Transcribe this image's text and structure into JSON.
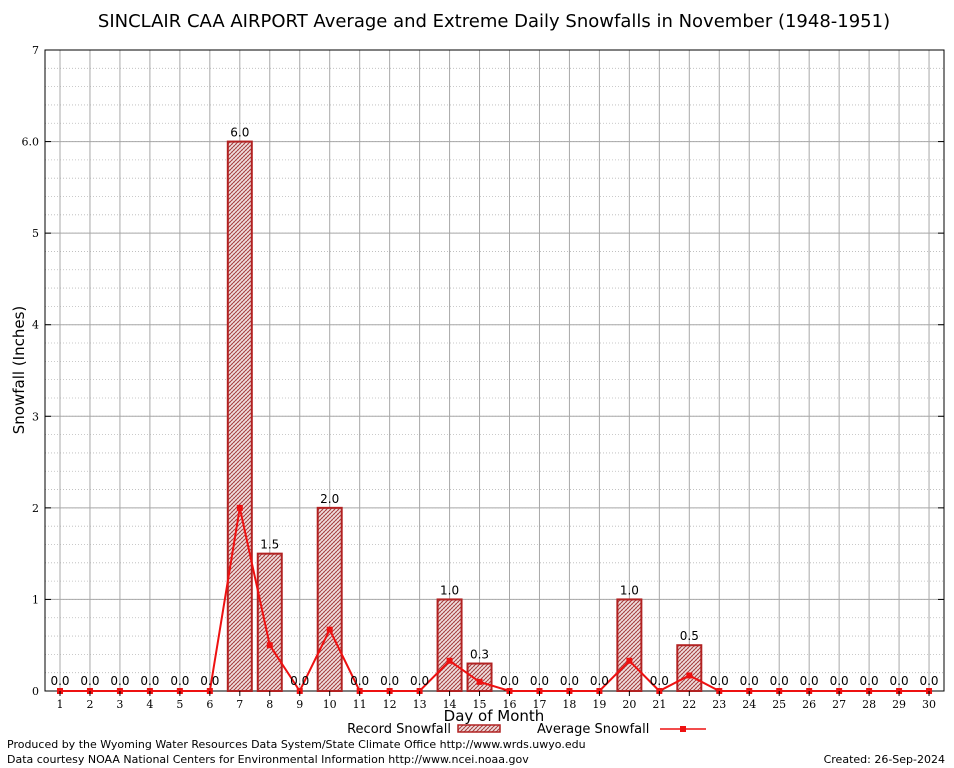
{
  "chart_data": {
    "type": "bar",
    "title": "SINCLAIR CAA AIRPORT Average and Extreme Daily Snowfalls in November (1948-1951)",
    "xlabel": "Day of Month",
    "ylabel": "Snowfall (Inches)",
    "ylim": [
      0,
      7
    ],
    "yticks": [
      "0",
      "1",
      "2",
      "3",
      "4",
      "5",
      "6.0",
      "7"
    ],
    "categories": [
      "1",
      "2",
      "3",
      "4",
      "5",
      "6",
      "7",
      "8",
      "9",
      "10",
      "11",
      "12",
      "13",
      "14",
      "15",
      "16",
      "17",
      "18",
      "19",
      "20",
      "21",
      "22",
      "23",
      "24",
      "25",
      "26",
      "27",
      "28",
      "29",
      "30"
    ],
    "series": [
      {
        "name": "Record Snowfall",
        "kind": "bar",
        "values": [
          0,
          0,
          0,
          0,
          0,
          0,
          6.0,
          1.5,
          0,
          2.0,
          0,
          0,
          0,
          1.0,
          0.3,
          0,
          0,
          0,
          0,
          1.0,
          0,
          0.5,
          0,
          0,
          0,
          0,
          0,
          0,
          0,
          0
        ],
        "labels": [
          "0.0",
          "0.0",
          "0.0",
          "0.0",
          "0.0",
          "0.0",
          "6.0",
          "1.5",
          "0.0",
          "2.0",
          "0.0",
          "0.0",
          "0.0",
          "1.0",
          "0.3",
          "0.0",
          "0.0",
          "0.0",
          "0.0",
          "1.0",
          "0.0",
          "0.5",
          "0.0",
          "0.0",
          "0.0",
          "0.0",
          "0.0",
          "0.0",
          "0.0",
          "0.0"
        ]
      },
      {
        "name": "Average Snowfall",
        "kind": "line",
        "values": [
          0,
          0,
          0,
          0,
          0,
          0,
          2.0,
          0.5,
          0,
          0.67,
          0,
          0,
          0,
          0.33,
          0.1,
          0,
          0,
          0,
          0,
          0.33,
          0,
          0.17,
          0,
          0,
          0,
          0,
          0,
          0,
          0,
          0
        ]
      }
    ],
    "colors": {
      "bar_edge": "#b22222",
      "bar_fill": "#e8c8c8",
      "line": "#ee1111",
      "grid": "#aaaaaa"
    },
    "grid": true,
    "legend_position": "bottom"
  },
  "footer": {
    "produced_by": "Produced by the Wyoming Water Resources Data System/State Climate Office http://www.wrds.uwyo.edu",
    "courtesy": "Data courtesy NOAA National Centers for Environmental Information http://www.ncei.noaa.gov",
    "created": "Created:  26-Sep-2024"
  }
}
